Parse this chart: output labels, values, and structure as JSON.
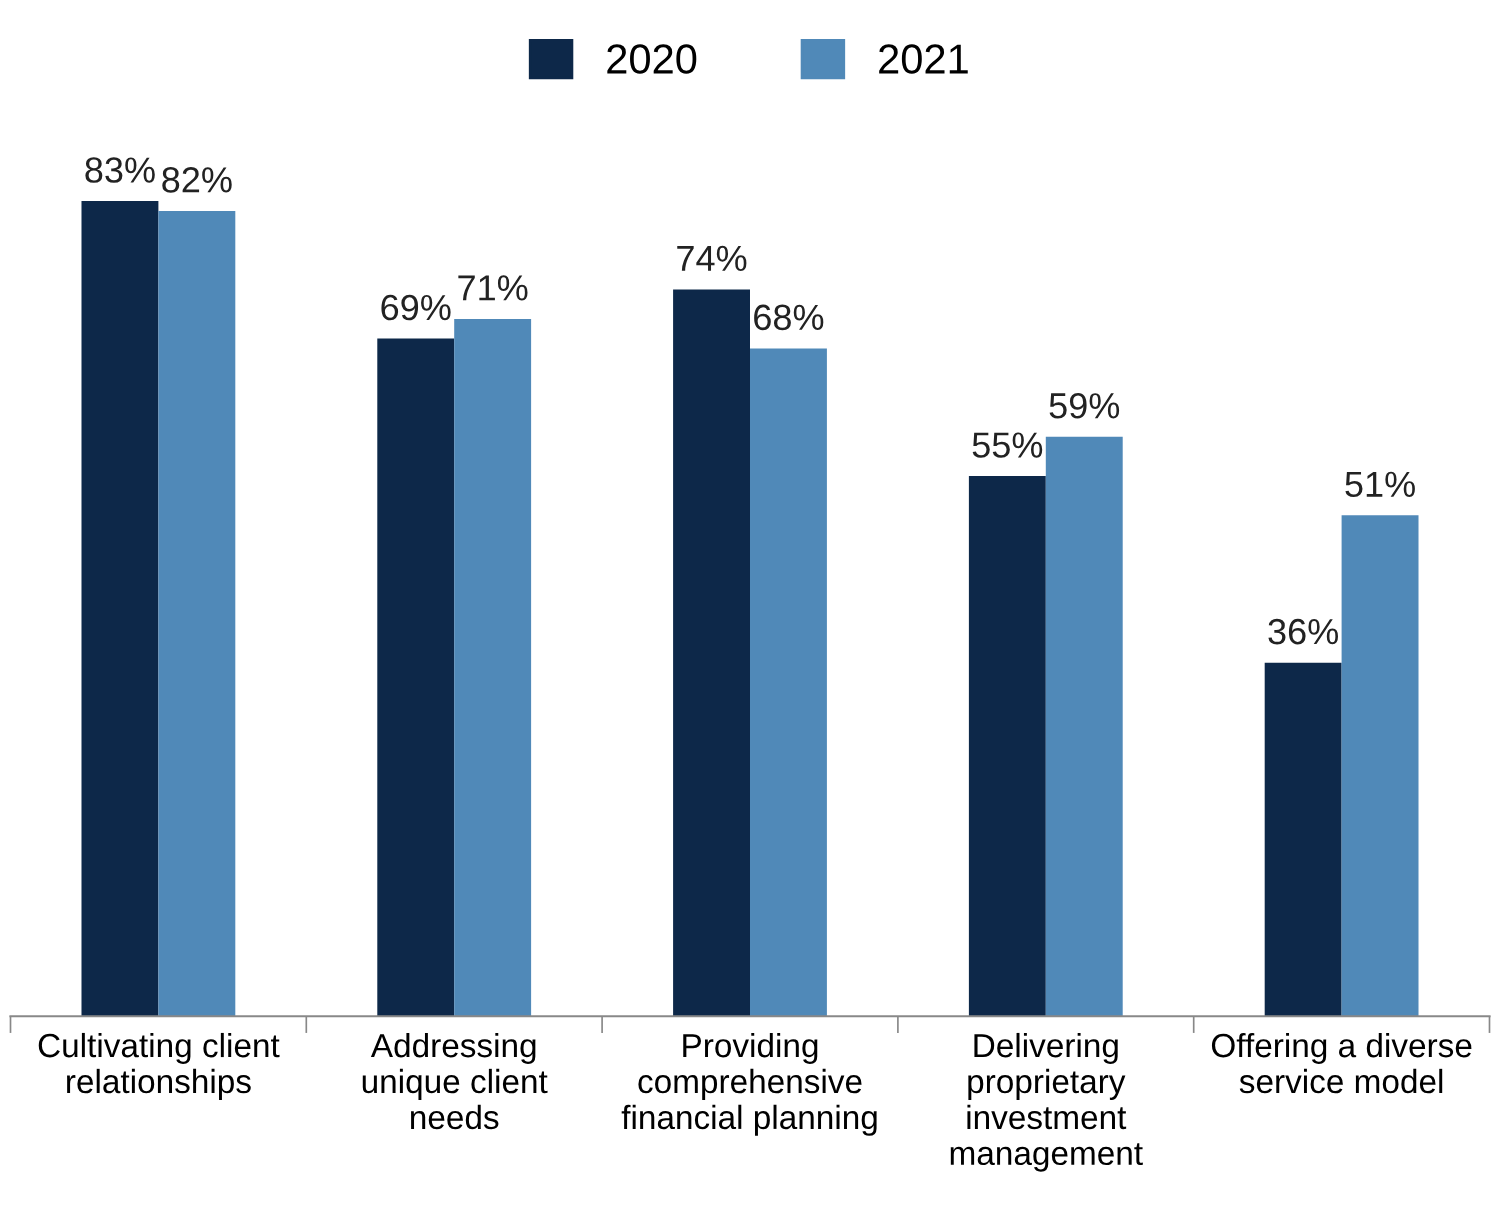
{
  "chart_data": {
    "type": "bar",
    "categories": [
      "Cultivating client\nrelationships",
      "Addressing\nunique client\nneeds",
      "Providing\ncomprehensive\nfinancial planning",
      "Delivering\nproprietary\ninvestment\nmanagement",
      "Offering a diverse\nservice model"
    ],
    "series": [
      {
        "name": "2020",
        "color": "#0d2849",
        "values": [
          83,
          69,
          74,
          55,
          36
        ],
        "value_labels": [
          "83%",
          "69%",
          "74%",
          "55%",
          "36%"
        ]
      },
      {
        "name": "2021",
        "color": "#5089b8",
        "values": [
          82,
          71,
          68,
          59,
          51
        ],
        "value_labels": [
          "82%",
          "71%",
          "68%",
          "59%",
          "51%"
        ]
      }
    ],
    "legend": "top",
    "grid": false
  }
}
